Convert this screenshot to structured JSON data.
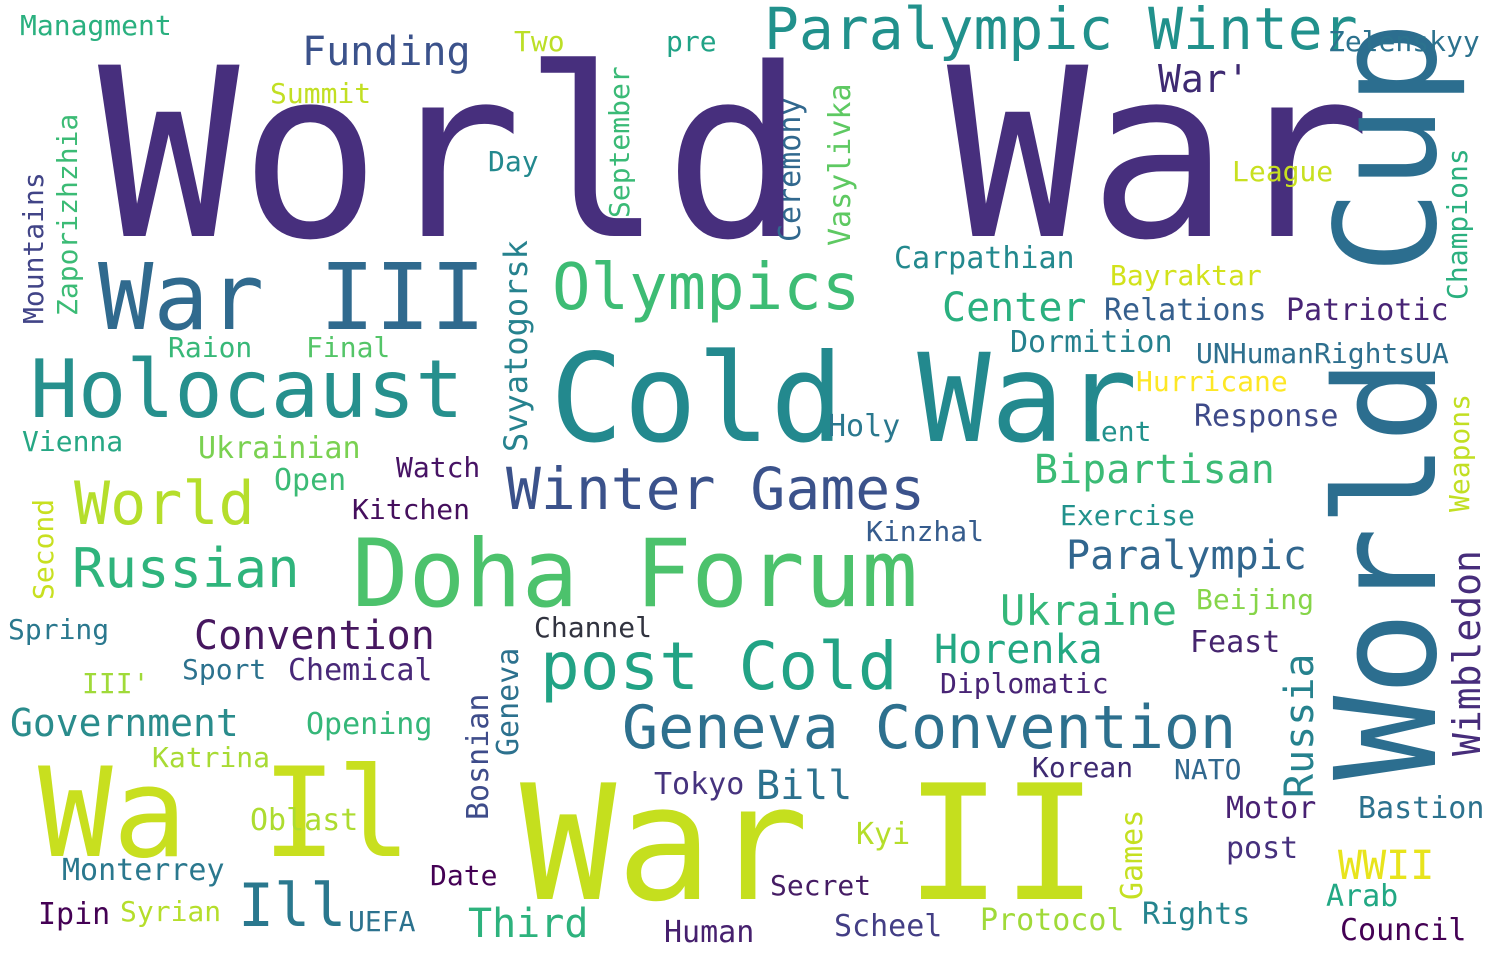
{
  "palette": {
    "deep_purple": "#472F7D",
    "indigo": "#3B528B",
    "blue": "#2C728E",
    "teal": "#21918C",
    "green_teal": "#28AE80",
    "green": "#5EC962",
    "yellow_green": "#ADDC30",
    "lime": "#C8DF1F",
    "yellow": "#E8E41C",
    "dark_purple": "#440154"
  },
  "words": [
    {
      "text": "World War",
      "color": "#472F7D"
    },
    {
      "text": "World Cup",
      "color": "#2C6E8F"
    },
    {
      "text": "War II",
      "color": "#C5DF1E"
    },
    {
      "text": "Cold War",
      "color": "#23898E"
    },
    {
      "text": "Doha Forum",
      "color": "#4CC26C"
    },
    {
      "text": "War III",
      "color": "#306A8E"
    },
    {
      "text": "Holocaust",
      "color": "#26908D"
    },
    {
      "text": "Olympics",
      "color": "#3DBC74"
    },
    {
      "text": "post Cold",
      "color": "#22A385"
    },
    {
      "text": "Geneva Convention",
      "color": "#2D708E"
    },
    {
      "text": "Winter Games",
      "color": "#3B528B"
    },
    {
      "text": "Paralympic Winter",
      "color": "#21918C"
    },
    {
      "text": "Wa Il",
      "color": "#C8DF1F"
    },
    {
      "text": "World",
      "color": "#B5DE2B"
    },
    {
      "text": "Russian",
      "color": "#2FB47C"
    },
    {
      "text": "Ill",
      "color": "#2A788E"
    },
    {
      "text": "Funding",
      "color": "#3B528B"
    },
    {
      "text": "War'",
      "color": "#3E2A72"
    },
    {
      "text": "Convention",
      "color": "#46175F"
    },
    {
      "text": "Government",
      "color": "#2A8C8C"
    },
    {
      "text": "Bipartisan",
      "color": "#3BBB75"
    },
    {
      "text": "Paralympic",
      "color": "#31668E"
    },
    {
      "text": "Ukraine",
      "color": "#35B779"
    },
    {
      "text": "Horenka",
      "color": "#23A883"
    },
    {
      "text": "Center",
      "color": "#2AB07F"
    },
    {
      "text": "Russia",
      "color": "#26828E"
    },
    {
      "text": "Wimbledon",
      "color": "#472D7B"
    },
    {
      "text": "Third",
      "color": "#2DB27D"
    },
    {
      "text": "Bill",
      "color": "#2C718E"
    },
    {
      "text": "WWII",
      "color": "#E8E41C"
    },
    {
      "text": "Managment",
      "color": "#2AB07F"
    },
    {
      "text": "Two",
      "color": "#BCDF27"
    },
    {
      "text": "pre",
      "color": "#20A386"
    },
    {
      "text": "Zelenskyy",
      "color": "#2C728E"
    },
    {
      "text": "Summit",
      "color": "#C2DF23"
    },
    {
      "text": "Day",
      "color": "#23898E"
    },
    {
      "text": "September",
      "color": "#3ABA76"
    },
    {
      "text": "Ceremony",
      "color": "#31688E"
    },
    {
      "text": "Vasylivka",
      "color": "#5EC962"
    },
    {
      "text": "Zaporizhzhia",
      "color": "#3BBB75"
    },
    {
      "text": "Mountains",
      "color": "#414487"
    },
    {
      "text": "League",
      "color": "#C8E020"
    },
    {
      "text": "Champions",
      "color": "#2BB07F"
    },
    {
      "text": "Carpathian",
      "color": "#23898E"
    },
    {
      "text": "Bayraktar",
      "color": "#D2E21B"
    },
    {
      "text": "Relations",
      "color": "#355F8D"
    },
    {
      "text": "Patriotic",
      "color": "#482475"
    },
    {
      "text": "Svyatogorsk",
      "color": "#26828E"
    },
    {
      "text": "Raion",
      "color": "#37B878"
    },
    {
      "text": "Final",
      "color": "#54C568"
    },
    {
      "text": "Dormition",
      "color": "#26818E"
    },
    {
      "text": "UNHumanRightsUA",
      "color": "#2E6F8E"
    },
    {
      "text": "Hurricane",
      "color": "#FDE725"
    },
    {
      "text": "Response",
      "color": "#3E4A89"
    },
    {
      "text": "Holy",
      "color": "#2A788E"
    },
    {
      "text": "Lent",
      "color": "#21918C"
    },
    {
      "text": "Vienna",
      "color": "#26A784"
    },
    {
      "text": "Ukrainian",
      "color": "#7AD151"
    },
    {
      "text": "Watch",
      "color": "#471365"
    },
    {
      "text": "Open",
      "color": "#3BBB75"
    },
    {
      "text": "Kitchen",
      "color": "#450F5D"
    },
    {
      "text": "Weapons",
      "color": "#C2DF23"
    },
    {
      "text": "Exercise",
      "color": "#21918C"
    },
    {
      "text": "Kinzhal",
      "color": "#365C8D"
    },
    {
      "text": "Second",
      "color": "#C8E020"
    },
    {
      "text": "Beijing",
      "color": "#86D549"
    },
    {
      "text": "Spring",
      "color": "#2A788E"
    },
    {
      "text": "Channel",
      "color": "#31333F"
    },
    {
      "text": "Feast",
      "color": "#46256E"
    },
    {
      "text": "Sport",
      "color": "#2C728E"
    },
    {
      "text": "Chemical",
      "color": "#482878"
    },
    {
      "text": "III'",
      "color": "#A0DA39"
    },
    {
      "text": "Geneva",
      "color": "#2C718E"
    },
    {
      "text": "Bosnian",
      "color": "#3E4C8A"
    },
    {
      "text": "Diplomatic",
      "color": "#482475"
    },
    {
      "text": "Opening",
      "color": "#35B779"
    },
    {
      "text": "Katrina",
      "color": "#A8DB34"
    },
    {
      "text": "Korean",
      "color": "#3E2A72"
    },
    {
      "text": "NATO",
      "color": "#31688E"
    },
    {
      "text": "Tokyo",
      "color": "#46337E"
    },
    {
      "text": "Oblast",
      "color": "#ADDC30"
    },
    {
      "text": "Kyi",
      "color": "#B5DE2B"
    },
    {
      "text": "Motor",
      "color": "#482173"
    },
    {
      "text": "Bastion",
      "color": "#2C728E"
    },
    {
      "text": "Games",
      "color": "#C5E021"
    },
    {
      "text": "post",
      "color": "#46307D"
    },
    {
      "text": "Monterrey",
      "color": "#2A788E"
    },
    {
      "text": "Date",
      "color": "#440154"
    },
    {
      "text": "Secret",
      "color": "#451C64"
    },
    {
      "text": "Arab",
      "color": "#22A884"
    },
    {
      "text": "Ipin",
      "color": "#440154"
    },
    {
      "text": "Syrian",
      "color": "#B5DE2B"
    },
    {
      "text": "UEFA",
      "color": "#2C728E"
    },
    {
      "text": "Human",
      "color": "#46206E"
    },
    {
      "text": "Scheel",
      "color": "#433E85"
    },
    {
      "text": "Protocol",
      "color": "#A0DA39"
    },
    {
      "text": "Rights",
      "color": "#25848E"
    },
    {
      "text": "Council",
      "color": "#440154"
    }
  ]
}
